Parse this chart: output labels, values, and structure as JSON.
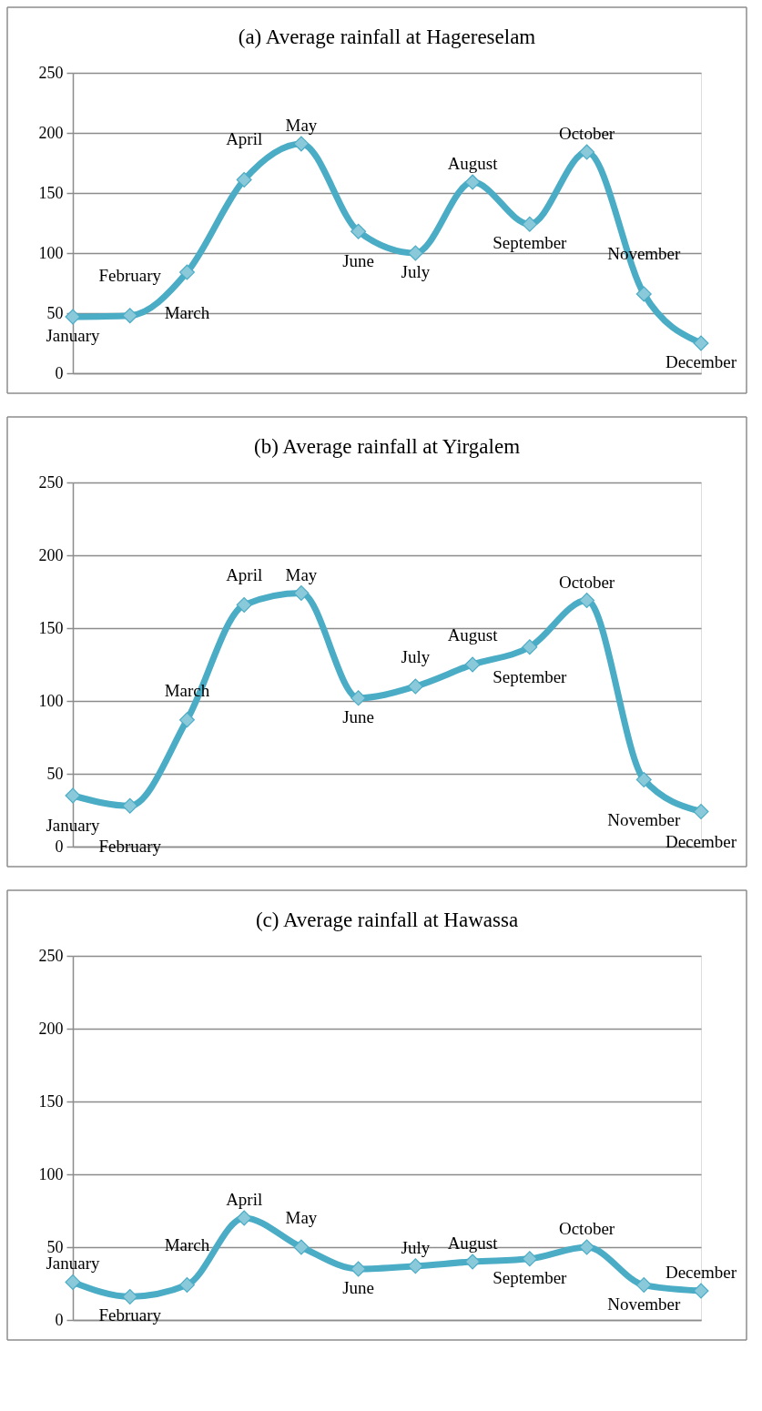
{
  "chart_data": [
    {
      "type": "line",
      "title": "(a) Average rainfall at Hagereselam",
      "categories": [
        "January",
        "February",
        "March",
        "April",
        "May",
        "June",
        "July",
        "August",
        "September",
        "October",
        "November",
        "December"
      ],
      "values": [
        47,
        48,
        84,
        161,
        191,
        118,
        100,
        159,
        124,
        184,
        66,
        25
      ],
      "color": "#4bacc6",
      "ylim": [
        0,
        250
      ],
      "yticks": [
        0,
        50,
        100,
        150,
        200,
        250
      ],
      "grid": "y",
      "marker": "diamond",
      "tick_labels": "y"
    },
    {
      "type": "line",
      "title": "(b) Average rainfall at Yirgalem",
      "categories": [
        "January",
        "February",
        "March",
        "April",
        "May",
        "June",
        "July",
        "August",
        "September",
        "October",
        "November",
        "December"
      ],
      "values": [
        35,
        28,
        87,
        166,
        174,
        102,
        110,
        125,
        137,
        169,
        46,
        24
      ],
      "color": "#4bacc6",
      "ylim": [
        0,
        250
      ],
      "yticks": [
        0,
        50,
        100,
        150,
        200,
        250
      ],
      "grid": "y",
      "marker": "diamond",
      "tick_labels": "y"
    },
    {
      "type": "line",
      "title": "(c) Average rainfall at Hawassa",
      "categories": [
        "January",
        "February",
        "March",
        "April",
        "May",
        "June",
        "July",
        "August",
        "September",
        "October",
        "November",
        "December"
      ],
      "values": [
        26,
        16,
        24,
        70,
        50,
        35,
        37,
        40,
        42,
        50,
        24,
        20
      ],
      "color": "#4bacc6",
      "ylim": [
        0,
        250
      ],
      "yticks": [
        0,
        50,
        100,
        150,
        200,
        250
      ],
      "grid": "y",
      "marker": "diamond",
      "tick_labels": "y"
    }
  ]
}
